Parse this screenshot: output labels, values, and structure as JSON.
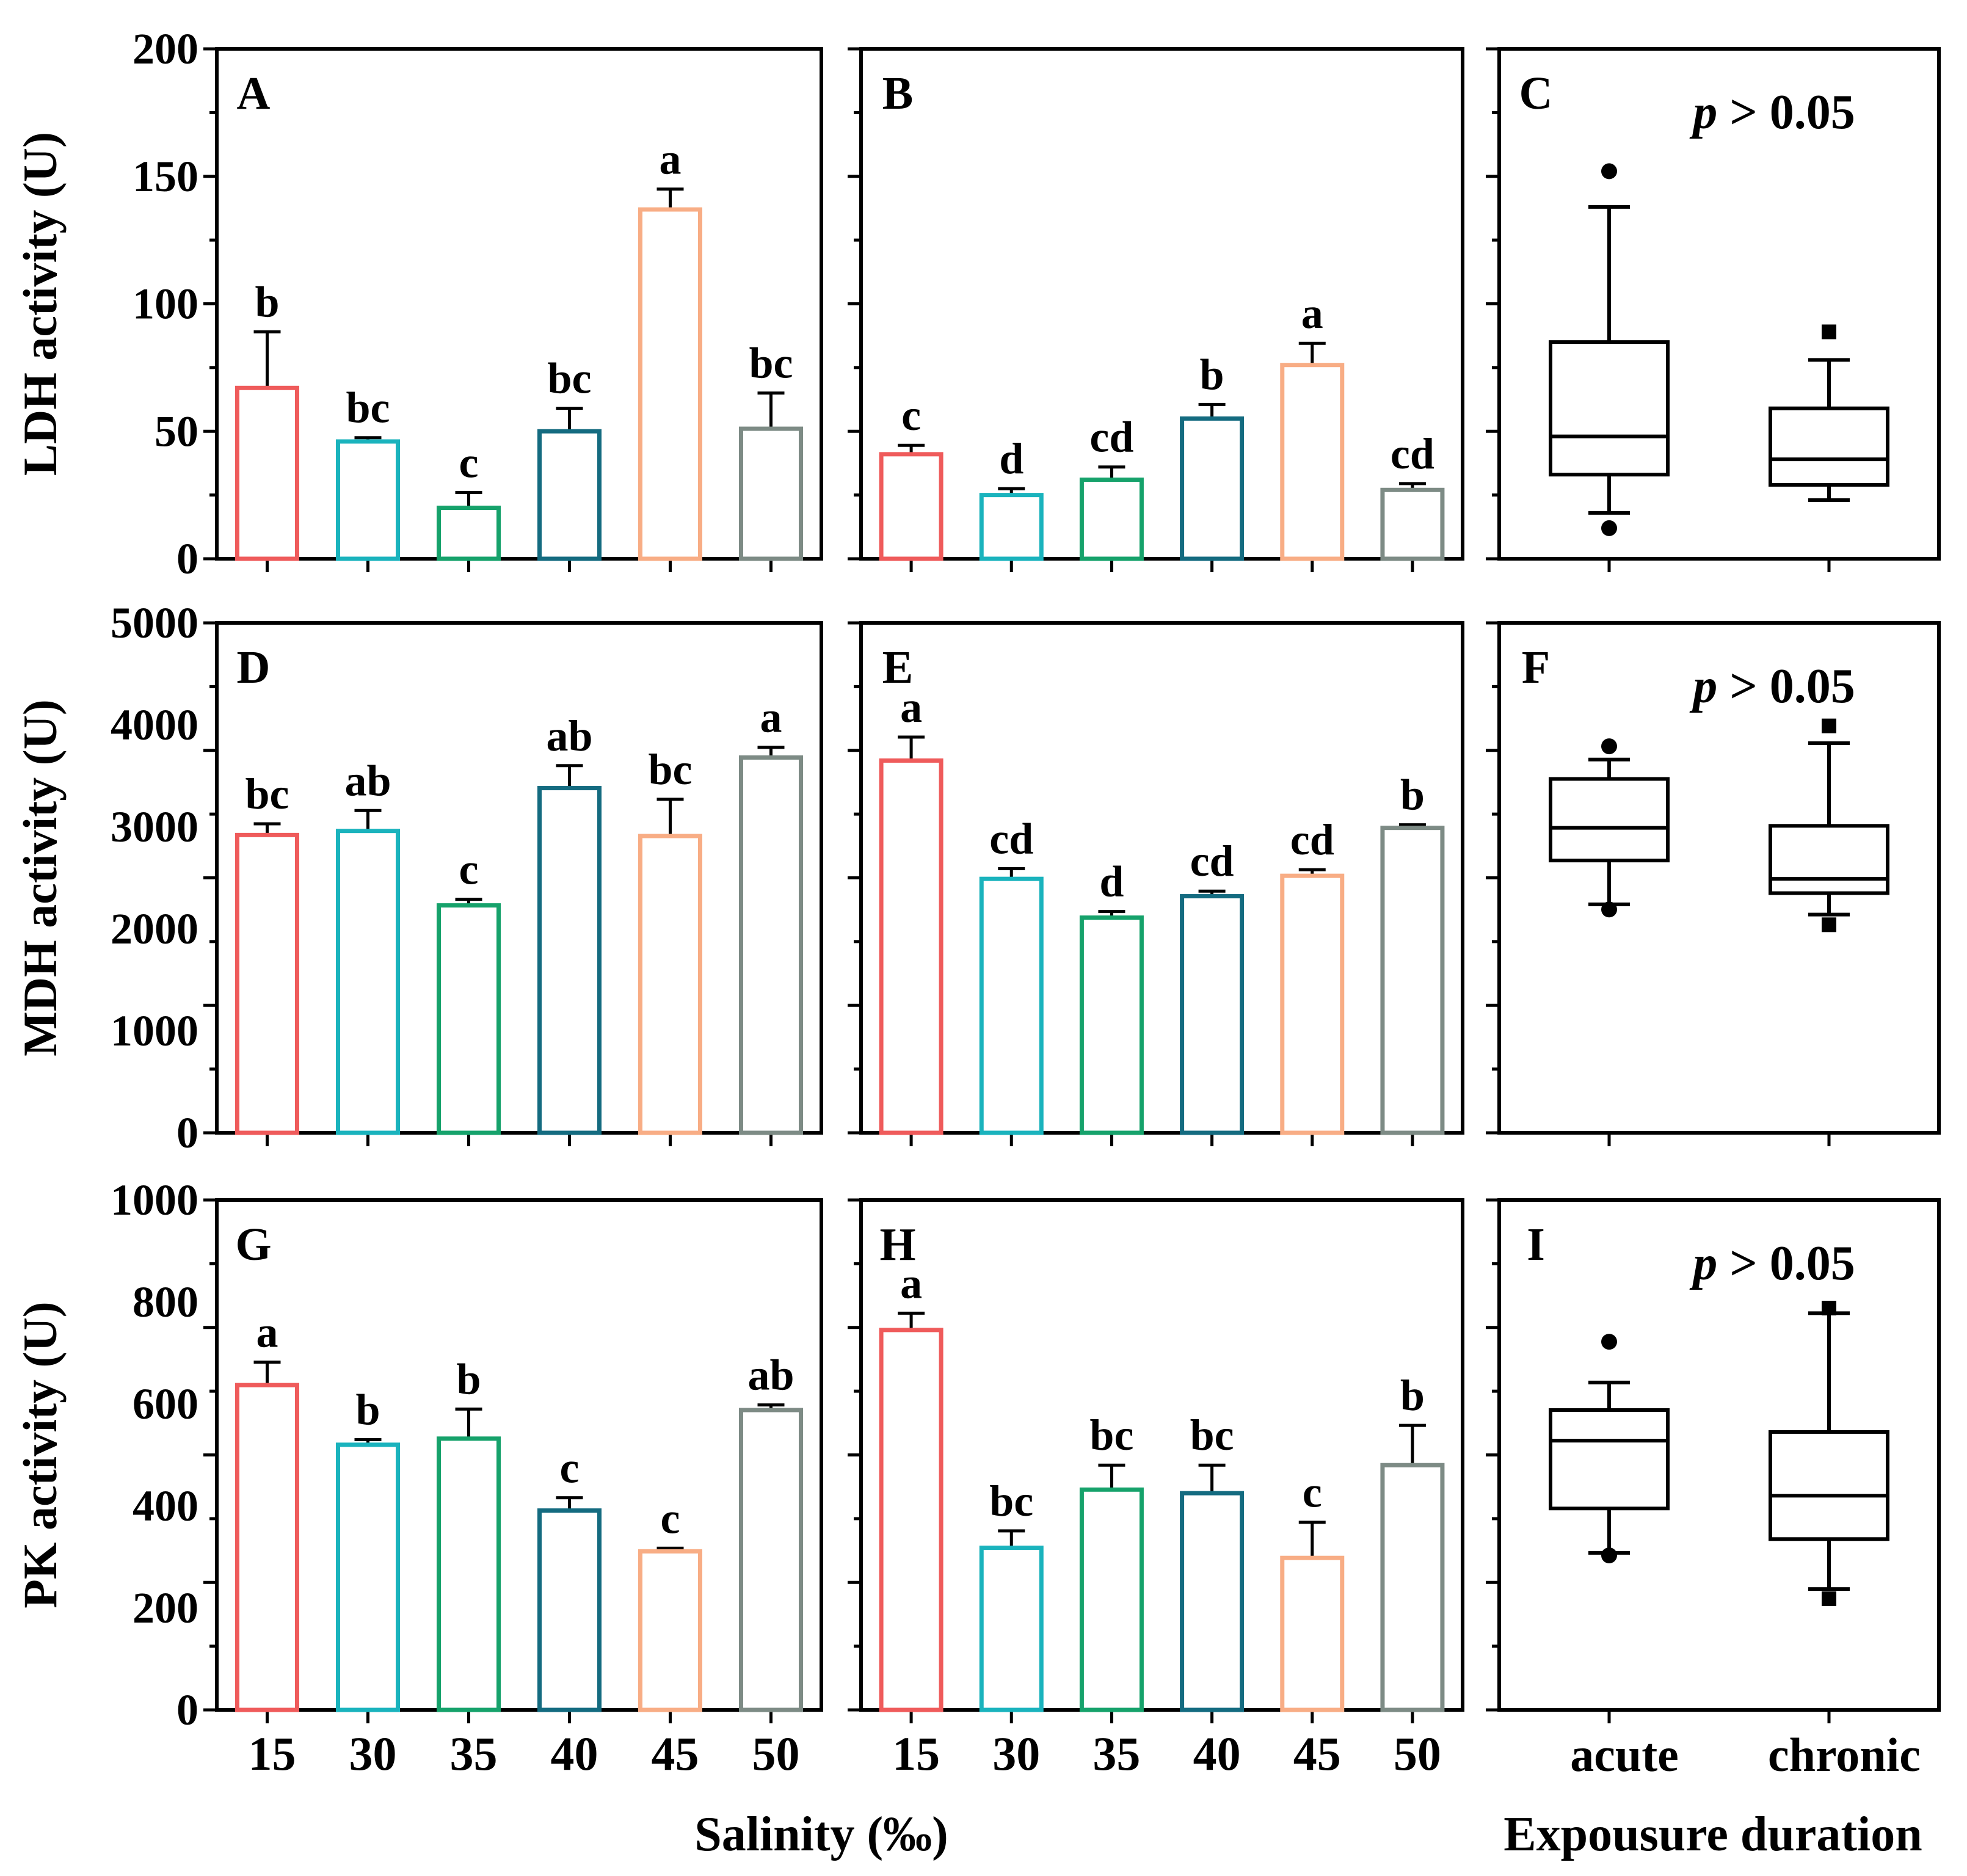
{
  "figure": {
    "x_title_left": "Salinity (‰)",
    "x_title_right": "Expousure duration"
  },
  "chart_data": [
    {
      "panel": "A",
      "type": "bar",
      "row": 0,
      "ylabel": "LDH activity (U)",
      "ylim": [
        0,
        200
      ],
      "yticks": [
        "0",
        "50",
        "100",
        "150",
        "200"
      ],
      "categories": [
        "15",
        "30",
        "35",
        "40",
        "45",
        "50"
      ],
      "values": [
        67,
        46,
        20,
        50,
        137,
        51
      ],
      "errors": [
        22,
        1.5,
        6,
        9,
        8,
        14
      ],
      "letters": [
        "b",
        "bc",
        "c",
        "bc",
        "a",
        "bc"
      ],
      "colors": [
        "#ef5b5b",
        "#1ab3bd",
        "#16a26b",
        "#146b80",
        "#f8ad85",
        "#7d8b85"
      ]
    },
    {
      "panel": "B",
      "type": "bar",
      "row": 0,
      "ylim": [
        0,
        200
      ],
      "categories": [
        "15",
        "30",
        "35",
        "40",
        "45",
        "50"
      ],
      "values": [
        41,
        25,
        31,
        55,
        76,
        27
      ],
      "errors": [
        3.5,
        2.5,
        5,
        5.5,
        8.5,
        2.5
      ],
      "letters": [
        "c",
        "d",
        "cd",
        "b",
        "a",
        "cd"
      ],
      "colors": [
        "#ef5b5b",
        "#1ab3bd",
        "#16a26b",
        "#146b80",
        "#f8ad85",
        "#7d8b85"
      ]
    },
    {
      "panel": "C",
      "type": "box",
      "row": 0,
      "ylim": [
        0,
        200
      ],
      "annotation_prefix": "p",
      "annotation_rest": " > 0.05",
      "categories": [
        "acute",
        "chronic"
      ],
      "boxes": [
        {
          "q1": 33,
          "median": 48,
          "q3": 85,
          "whisker_low": 18,
          "whisker_high": 138,
          "outliers": [
            152,
            12
          ]
        },
        {
          "q1": 29,
          "median": 39,
          "q3": 59,
          "whisker_low": 23,
          "whisker_high": 78,
          "outliers": [
            89
          ]
        }
      ]
    },
    {
      "panel": "D",
      "type": "bar",
      "row": 1,
      "ylabel": "MDH activity (U)",
      "ylim": [
        0,
        5000
      ],
      "yticks": [
        "0",
        "1000",
        "2000",
        "3000",
        "4000",
        "5000"
      ],
      "categories": [
        "15",
        "30",
        "35",
        "40",
        "45",
        "50"
      ],
      "values": [
        2920,
        2960,
        2230,
        3380,
        2910,
        3680
      ],
      "errors": [
        110,
        200,
        60,
        220,
        360,
        100
      ],
      "letters": [
        "bc",
        "ab",
        "c",
        "ab",
        "bc",
        "a"
      ],
      "colors": [
        "#ef5b5b",
        "#1ab3bd",
        "#16a26b",
        "#146b80",
        "#f8ad85",
        "#7d8b85"
      ]
    },
    {
      "panel": "E",
      "type": "bar",
      "row": 1,
      "ylim": [
        0,
        5000
      ],
      "categories": [
        "15",
        "30",
        "35",
        "40",
        "45",
        "50"
      ],
      "values": [
        3650,
        2490,
        2110,
        2320,
        2520,
        2990
      ],
      "errors": [
        230,
        100,
        60,
        50,
        60,
        30
      ],
      "letters": [
        "a",
        "cd",
        "d",
        "cd",
        "cd",
        "b"
      ],
      "colors": [
        "#ef5b5b",
        "#1ab3bd",
        "#16a26b",
        "#146b80",
        "#f8ad85",
        "#7d8b85"
      ]
    },
    {
      "panel": "F",
      "type": "box",
      "row": 1,
      "ylim": [
        0,
        5000
      ],
      "annotation_prefix": "p",
      "annotation_rest": " > 0.05",
      "categories": [
        "acute",
        "chronic"
      ],
      "boxes": [
        {
          "q1": 2670,
          "median": 2990,
          "q3": 3470,
          "whisker_low": 2240,
          "whisker_high": 3660,
          "outliers": [
            3790,
            2190
          ]
        },
        {
          "q1": 2350,
          "median": 2490,
          "q3": 3010,
          "whisker_low": 2140,
          "whisker_high": 3820,
          "outliers": [
            3990,
            2040
          ]
        }
      ]
    },
    {
      "panel": "G",
      "type": "bar",
      "row": 2,
      "ylabel": "PK activity (U)",
      "ylim": [
        0,
        1000
      ],
      "yticks": [
        "0",
        "200",
        "400",
        "600",
        "800",
        "1000"
      ],
      "categories": [
        "15",
        "30",
        "35",
        "40",
        "45",
        "50"
      ],
      "values": [
        637,
        520,
        532,
        391,
        311,
        588
      ],
      "errors": [
        45,
        10,
        58,
        25,
        6,
        10
      ],
      "letters": [
        "a",
        "b",
        "b",
        "c",
        "c",
        "ab"
      ],
      "colors": [
        "#ef5b5b",
        "#1ab3bd",
        "#16a26b",
        "#146b80",
        "#f8ad85",
        "#7d8b85"
      ]
    },
    {
      "panel": "H",
      "type": "bar",
      "row": 2,
      "ylim": [
        0,
        1000
      ],
      "categories": [
        "15",
        "30",
        "35",
        "40",
        "45",
        "50"
      ],
      "values": [
        745,
        318,
        432,
        425,
        298,
        480
      ],
      "errors": [
        33,
        33,
        48,
        55,
        70,
        78
      ],
      "letters": [
        "a",
        "bc",
        "bc",
        "bc",
        "c",
        "b"
      ],
      "colors": [
        "#ef5b5b",
        "#1ab3bd",
        "#16a26b",
        "#146b80",
        "#f8ad85",
        "#7d8b85"
      ]
    },
    {
      "panel": "I",
      "type": "box",
      "row": 2,
      "ylim": [
        0,
        1000
      ],
      "annotation_prefix": "p",
      "annotation_rest": " > 0.05",
      "categories": [
        "acute",
        "chronic"
      ],
      "boxes": [
        {
          "q1": 395,
          "median": 528,
          "q3": 588,
          "whisker_low": 308,
          "whisker_high": 642,
          "outliers": [
            722,
            303
          ]
        },
        {
          "q1": 335,
          "median": 420,
          "q3": 545,
          "whisker_low": 237,
          "whisker_high": 778,
          "outliers": [
            788,
            218
          ]
        }
      ]
    }
  ]
}
